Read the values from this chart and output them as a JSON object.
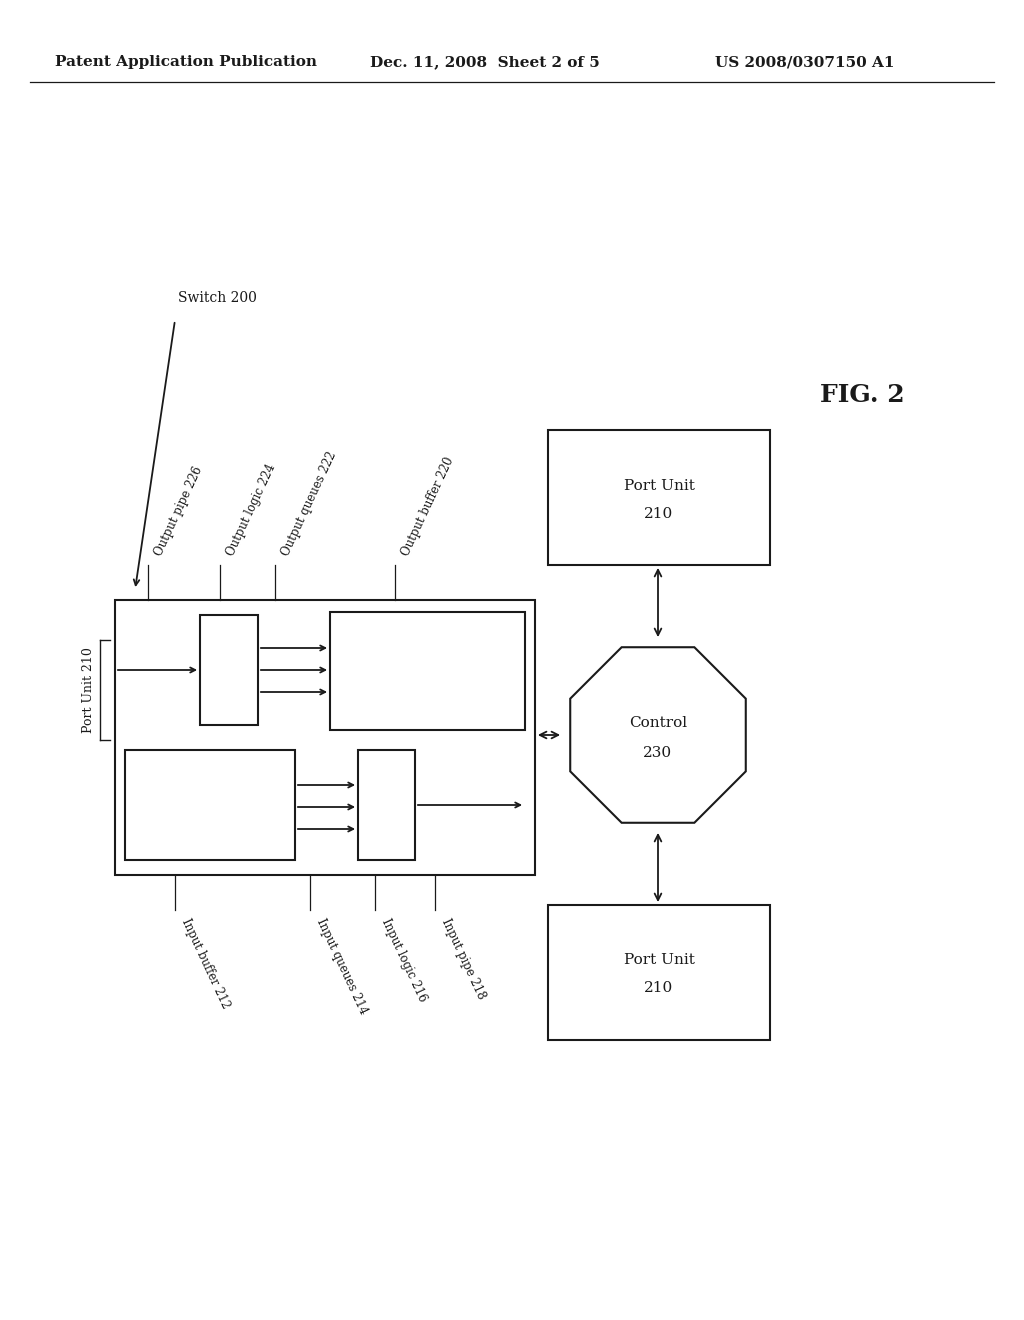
{
  "header_left": "Patent Application Publication",
  "header_mid": "Dec. 11, 2008  Sheet 2 of 5",
  "header_right": "US 2008/0307150 A1",
  "fig_label": "FIG. 2",
  "switch_label": "Switch 200",
  "port_unit_label": "Port Unit 210",
  "labels_top": [
    "Output pipe 226",
    "Output logic 224",
    "Output queues 222",
    "Output buffer 220"
  ],
  "labels_bot": [
    "Input buffer 212",
    "Input queues 214",
    "Input logic 216",
    "Input pipe 218"
  ],
  "bg_color": "#ffffff",
  "line_color": "#1a1a1a",
  "text_color": "#1a1a1a",
  "font_size_header": 11,
  "font_size_label": 8.5,
  "font_size_fig": 18,
  "font_size_box": 11
}
